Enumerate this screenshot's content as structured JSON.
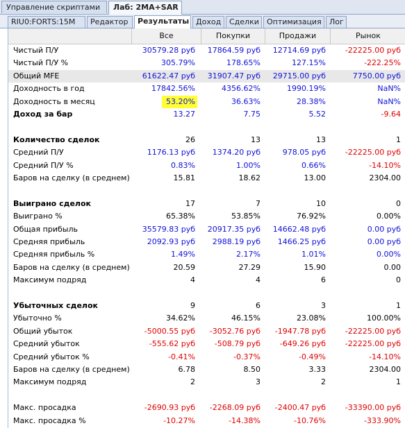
{
  "top_tabs": [
    "Управление скриптами",
    "Лаб: 2MA+SAR"
  ],
  "sub_tabs": [
    "RIU0:FORTS:15M",
    "Редактор",
    "Результаты",
    "Доход",
    "Сделки",
    "Оптимизация",
    "Лог"
  ],
  "columns": [
    "Все",
    "Покупки",
    "Продажи",
    "Рынок"
  ],
  "colors": {
    "positive": "#1010d8",
    "negative": "#e00000",
    "highlight": "#ffff33"
  },
  "rows": [
    {
      "label": "Чистый П/У",
      "values": [
        "30579.28 руб",
        "17864.59 руб",
        "12714.69 руб",
        "-22225.00 руб"
      ],
      "colors": [
        "blue",
        "blue",
        "blue",
        "red"
      ]
    },
    {
      "label": "Чистый П/У %",
      "values": [
        "305.79%",
        "178.65%",
        "127.15%",
        "-222.25%"
      ],
      "colors": [
        "blue",
        "blue",
        "blue",
        "red"
      ]
    },
    {
      "label": "Общий MFE",
      "values": [
        "61622.47 руб",
        "31907.47 руб",
        "29715.00 руб",
        "7750.00 руб"
      ],
      "colors": [
        "blue",
        "blue",
        "blue",
        "blue"
      ],
      "highlight": true
    },
    {
      "label": "Доходность в год",
      "values": [
        "17842.56%",
        "4356.62%",
        "1990.19%",
        "NaN%"
      ],
      "colors": [
        "blue",
        "blue",
        "blue",
        "blue"
      ]
    },
    {
      "label": "Доходность в месяц",
      "values": [
        "53.20%",
        "36.63%",
        "28.38%",
        "NaN%"
      ],
      "colors": [
        "blue",
        "blue",
        "blue",
        "blue"
      ],
      "marked": 0
    },
    {
      "label": "Доход за бар",
      "values": [
        "13.27",
        "7.75",
        "5.52",
        "-9.64"
      ],
      "colors": [
        "blue",
        "blue",
        "blue",
        "red"
      ],
      "bold": true
    },
    {
      "label": "",
      "values": [
        "",
        "",
        "",
        ""
      ],
      "colors": [
        "blk",
        "blk",
        "blk",
        "blk"
      ]
    },
    {
      "label": "Количество сделок",
      "values": [
        "26",
        "13",
        "13",
        "1"
      ],
      "colors": [
        "blk",
        "blk",
        "blk",
        "blk"
      ],
      "bold": true
    },
    {
      "label": "Средний П/У",
      "values": [
        "1176.13 руб",
        "1374.20 руб",
        "978.05 руб",
        "-22225.00 руб"
      ],
      "colors": [
        "blue",
        "blue",
        "blue",
        "red"
      ]
    },
    {
      "label": "Средний П/У %",
      "values": [
        "0.83%",
        "1.00%",
        "0.66%",
        "-14.10%"
      ],
      "colors": [
        "blue",
        "blue",
        "blue",
        "red"
      ]
    },
    {
      "label": "Баров на сделку (в среднем)",
      "values": [
        "15.81",
        "18.62",
        "13.00",
        "2304.00"
      ],
      "colors": [
        "blk",
        "blk",
        "blk",
        "blk"
      ]
    },
    {
      "label": "",
      "values": [
        "",
        "",
        "",
        ""
      ],
      "colors": [
        "blk",
        "blk",
        "blk",
        "blk"
      ]
    },
    {
      "label": "Выиграно сделок",
      "values": [
        "17",
        "7",
        "10",
        "0"
      ],
      "colors": [
        "blk",
        "blk",
        "blk",
        "blk"
      ],
      "bold": true
    },
    {
      "label": "Выиграно %",
      "values": [
        "65.38%",
        "53.85%",
        "76.92%",
        "0.00%"
      ],
      "colors": [
        "blk",
        "blk",
        "blk",
        "blk"
      ]
    },
    {
      "label": "Общая прибыль",
      "values": [
        "35579.83 руб",
        "20917.35 руб",
        "14662.48 руб",
        "0.00 руб"
      ],
      "colors": [
        "blue",
        "blue",
        "blue",
        "blue"
      ]
    },
    {
      "label": "Средняя прибыль",
      "values": [
        "2092.93 руб",
        "2988.19 руб",
        "1466.25 руб",
        "0.00 руб"
      ],
      "colors": [
        "blue",
        "blue",
        "blue",
        "blue"
      ]
    },
    {
      "label": "Средняя прибыль %",
      "values": [
        "1.49%",
        "2.17%",
        "1.01%",
        "0.00%"
      ],
      "colors": [
        "blue",
        "blue",
        "blue",
        "blue"
      ]
    },
    {
      "label": "Баров на сделку (в среднем)",
      "values": [
        "20.59",
        "27.29",
        "15.90",
        "0.00"
      ],
      "colors": [
        "blk",
        "blk",
        "blk",
        "blk"
      ]
    },
    {
      "label": "Максимум подряд",
      "values": [
        "4",
        "4",
        "6",
        "0"
      ],
      "colors": [
        "blk",
        "blk",
        "blk",
        "blk"
      ]
    },
    {
      "label": "",
      "values": [
        "",
        "",
        "",
        ""
      ],
      "colors": [
        "blk",
        "blk",
        "blk",
        "blk"
      ]
    },
    {
      "label": "Убыточных сделок",
      "values": [
        "9",
        "6",
        "3",
        "1"
      ],
      "colors": [
        "blk",
        "blk",
        "blk",
        "blk"
      ],
      "bold": true
    },
    {
      "label": "Убыточно %",
      "values": [
        "34.62%",
        "46.15%",
        "23.08%",
        "100.00%"
      ],
      "colors": [
        "blk",
        "blk",
        "blk",
        "blk"
      ]
    },
    {
      "label": "Общий убыток",
      "values": [
        "-5000.55 руб",
        "-3052.76 руб",
        "-1947.78 руб",
        "-22225.00 руб"
      ],
      "colors": [
        "red",
        "red",
        "red",
        "red"
      ]
    },
    {
      "label": "Средний убыток",
      "values": [
        "-555.62 руб",
        "-508.79 руб",
        "-649.26 руб",
        "-22225.00 руб"
      ],
      "colors": [
        "red",
        "red",
        "red",
        "red"
      ]
    },
    {
      "label": "Средний убыток %",
      "values": [
        "-0.41%",
        "-0.37%",
        "-0.49%",
        "-14.10%"
      ],
      "colors": [
        "red",
        "red",
        "red",
        "red"
      ]
    },
    {
      "label": "Баров на сделку (в среднем)",
      "values": [
        "6.78",
        "8.50",
        "3.33",
        "2304.00"
      ],
      "colors": [
        "blk",
        "blk",
        "blk",
        "blk"
      ]
    },
    {
      "label": "Максимум подряд",
      "values": [
        "2",
        "3",
        "2",
        "1"
      ],
      "colors": [
        "blk",
        "blk",
        "blk",
        "blk"
      ]
    },
    {
      "label": "",
      "values": [
        "",
        "",
        "",
        ""
      ],
      "colors": [
        "blk",
        "blk",
        "blk",
        "blk"
      ]
    },
    {
      "label": "Макс. просадка",
      "values": [
        "-2690.93 руб",
        "-2268.09 руб",
        "-2400.47 руб",
        "-33390.00 руб"
      ],
      "colors": [
        "red",
        "red",
        "red",
        "red"
      ]
    },
    {
      "label": "Макс. просадка %",
      "values": [
        "-10.27%",
        "-14.38%",
        "-10.76%",
        "-333.90%"
      ],
      "colors": [
        "red",
        "red",
        "red",
        "red"
      ]
    }
  ]
}
